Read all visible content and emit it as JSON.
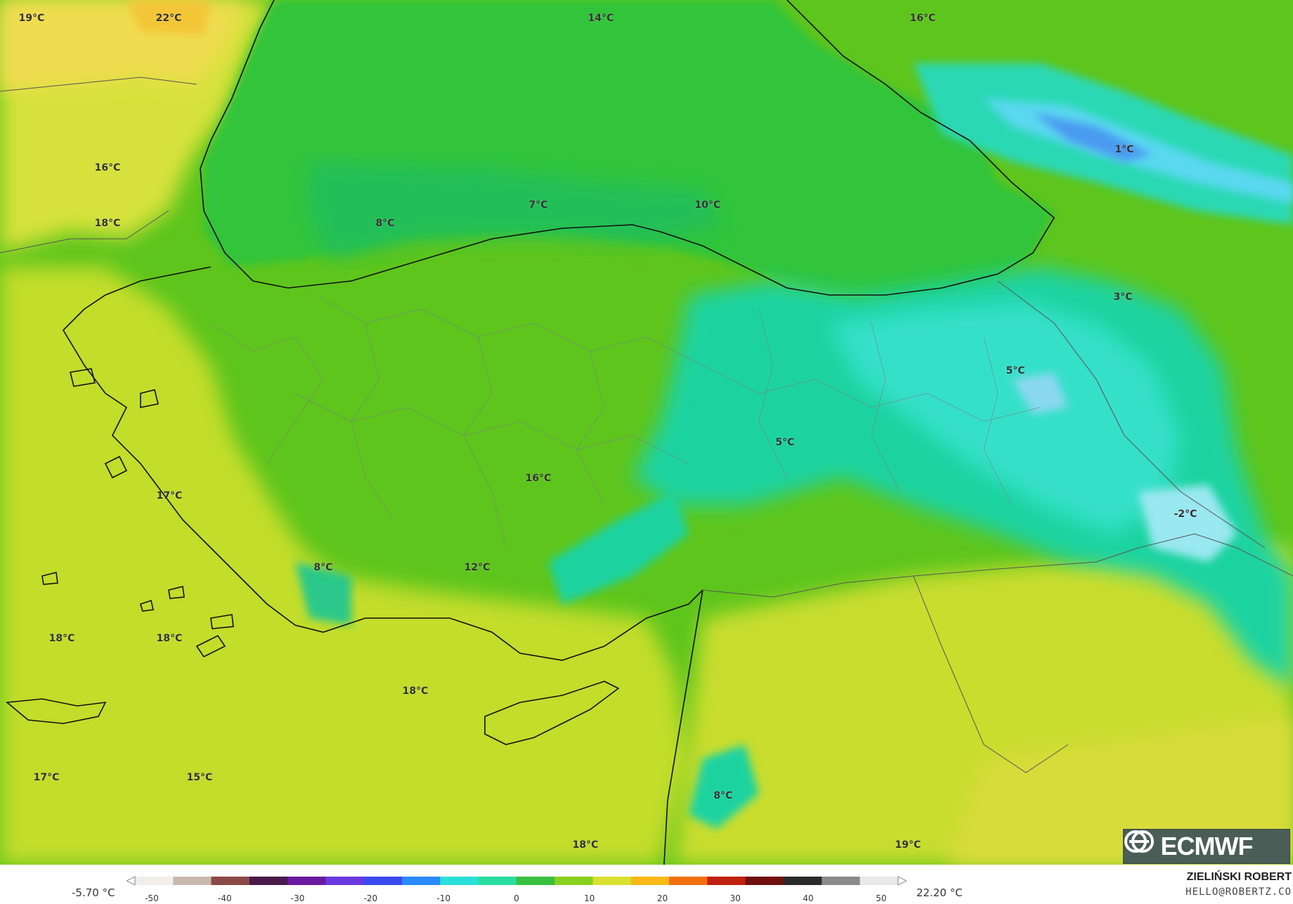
{
  "map": {
    "temperature_labels": [
      {
        "text": "19°C",
        "kind": "warm"
      },
      {
        "text": "22°C",
        "kind": "warm"
      },
      {
        "text": "14°C",
        "kind": "mild"
      },
      {
        "text": "16°C",
        "kind": "mild"
      },
      {
        "text": "16°C",
        "kind": "warm"
      },
      {
        "text": "18°C",
        "kind": "warm"
      },
      {
        "text": "1°C",
        "kind": "cold"
      },
      {
        "text": "7°C",
        "kind": "cool"
      },
      {
        "text": "8°C",
        "kind": "cool"
      },
      {
        "text": "10°C",
        "kind": "cool"
      },
      {
        "text": "3°C",
        "kind": "cold"
      },
      {
        "text": "5°C",
        "kind": "cold"
      },
      {
        "text": "5°C",
        "kind": "cold"
      },
      {
        "text": "16°C",
        "kind": "mild"
      },
      {
        "text": "17°C",
        "kind": "warm"
      },
      {
        "text": "-2°C",
        "kind": "cold"
      },
      {
        "text": "8°C",
        "kind": "cool"
      },
      {
        "text": "12°C",
        "kind": "cool"
      },
      {
        "text": "18°C",
        "kind": "warm"
      },
      {
        "text": "18°C",
        "kind": "warm"
      },
      {
        "text": "18°C",
        "kind": "warm"
      },
      {
        "text": "17°C",
        "kind": "warm"
      },
      {
        "text": "15°C",
        "kind": "warm"
      },
      {
        "text": "8°C",
        "kind": "cool"
      },
      {
        "text": "18°C",
        "kind": "warm"
      },
      {
        "text": "19°C",
        "kind": "warm"
      }
    ]
  },
  "logo": {
    "text": "ECMWF",
    "icon": "ecmwf-logo-icon"
  },
  "legend": {
    "min_label": "-5.70 °C",
    "max_label": "22.20 °C",
    "ticks": [
      "-50",
      "-40",
      "-30",
      "-20",
      "-10",
      "0",
      "10",
      "20",
      "30",
      "40",
      "50"
    ],
    "colors": [
      "#f2eeea",
      "#c9b8b0",
      "#8a4a46",
      "#4a1a4a",
      "#6a1aa0",
      "#6a3ae0",
      "#3a4af0",
      "#2a8af8",
      "#2ae0d8",
      "#2adca0",
      "#3ac040",
      "#8ad020",
      "#d8e030",
      "#f8b818",
      "#f07010",
      "#c02010",
      "#701010",
      "#2a2a2a",
      "#8a8a8a",
      "#e8e8e8"
    ]
  },
  "author": {
    "name": "ZIELIŃSKI ROBERT",
    "email": "HELLO@ROBERTZ.CO"
  }
}
